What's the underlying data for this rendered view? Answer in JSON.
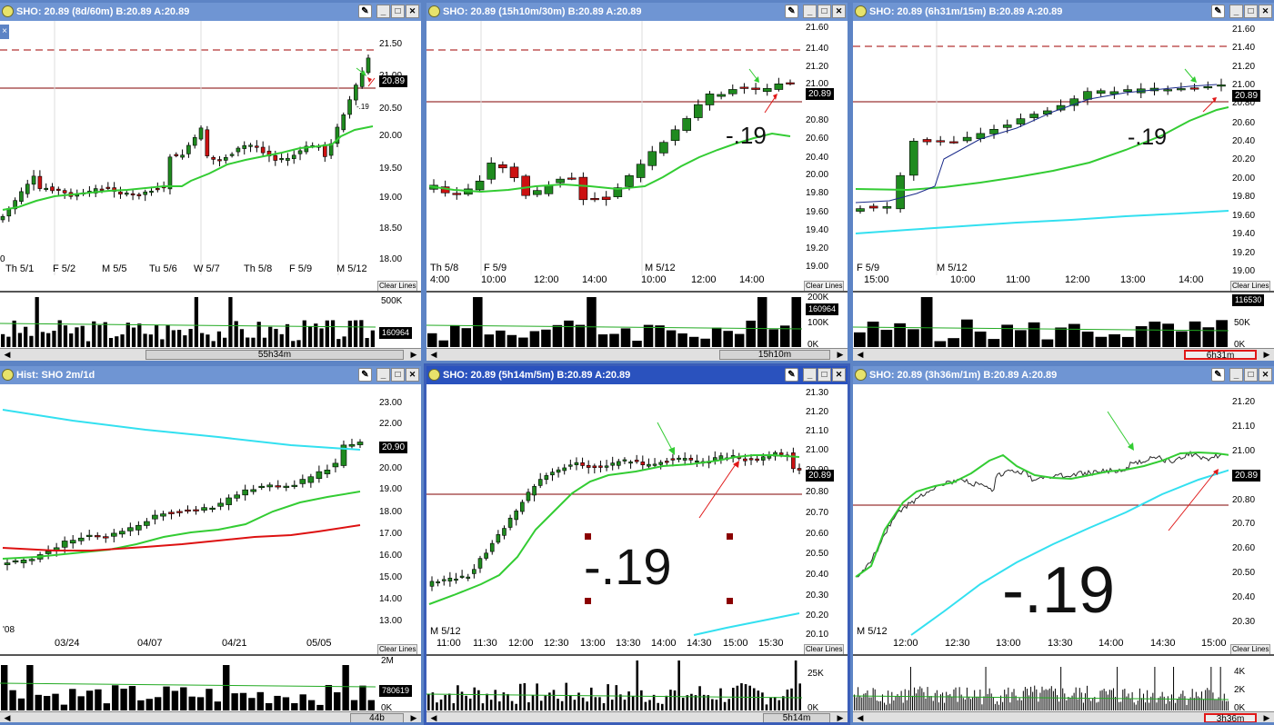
{
  "windows": [
    {
      "id": "w1",
      "title": "SHO: 20.89 (8d/60m)  B:20.89  A:20.89",
      "x_labels": [
        "Th 5/1",
        "F 5/2",
        "M 5/5",
        "Tu 5/6",
        "W 5/7",
        "Th 5/8",
        "F 5/9",
        "M 5/12"
      ],
      "y_labels": [
        "21.50",
        "21.00",
        "20.50",
        "20.00",
        "19.50",
        "19.00",
        "18.50",
        "18.00"
      ],
      "price_tag": "20.89",
      "annotation": "-.19",
      "clear": "Clear Lines",
      "vol_labels": [
        "500K",
        "160964"
      ],
      "scroll_label": "55h34m",
      "left_edge": "0"
    },
    {
      "id": "w2",
      "title": "SHO: 20.89 (15h10m/30m)  B:20.89  A:20.89",
      "x_labels_top": [
        "Th 5/8",
        "F  5/9",
        "M  5/12"
      ],
      "x_labels": [
        "4:00",
        "10:00",
        "12:00",
        "14:00",
        "10:00",
        "12:00",
        "14:00"
      ],
      "y_labels": [
        "21.60",
        "21.40",
        "21.20",
        "21.00",
        "20.80",
        "20.60",
        "20.40",
        "20.20",
        "20.00",
        "19.80",
        "19.60",
        "19.40",
        "19.20",
        "19.00"
      ],
      "price_tag": "20.89",
      "annotation": ".19",
      "annotation_prefix": "-",
      "clear": "Clear Lines",
      "vol_labels": [
        "200K",
        "160964",
        "100K",
        "0K"
      ],
      "scroll_label": "15h10m"
    },
    {
      "id": "w3",
      "title": "SHO: 20.89 (6h31m/15m)  B:20.89  A:20.89",
      "x_labels_top": [
        "F  5/9",
        "M  5/12"
      ],
      "x_labels": [
        "15:00",
        "10:00",
        "11:00",
        "12:00",
        "13:00",
        "14:00"
      ],
      "y_labels": [
        "21.60",
        "21.40",
        "21.20",
        "21.00",
        "20.80",
        "20.60",
        "20.40",
        "20.20",
        "20.00",
        "19.80",
        "19.60",
        "19.40",
        "19.20",
        "19.00"
      ],
      "price_tag": "20.89",
      "annotation": "-.19",
      "clear": "Clear Lines",
      "vol_labels": [
        "116530",
        "50K",
        "0K"
      ],
      "scroll_label": "6h31m"
    },
    {
      "id": "w4",
      "title": "Hist: SHO 2m/1d",
      "x_labels": [
        "'08",
        "03/24",
        "04/07",
        "04/21",
        "05/05"
      ],
      "y_labels": [
        "23.00",
        "22.00",
        "21.00",
        "20.00",
        "19.00",
        "18.00",
        "17.00",
        "16.00",
        "15.00",
        "14.00",
        "13.00"
      ],
      "price_tag": "20.90",
      "clear": "Clear Lines",
      "vol_labels": [
        "2M",
        "780619",
        "0K"
      ],
      "scroll_label": "44b"
    },
    {
      "id": "w5",
      "title": "SHO: 20.89 (5h14m/5m)  B:20.89  A:20.89",
      "x_labels_top": [
        "M  5/12"
      ],
      "x_labels": [
        "11:00",
        "11:30",
        "12:00",
        "12:30",
        "13:00",
        "13:30",
        "14:00",
        "14:30",
        "15:00",
        "15:30"
      ],
      "y_labels": [
        "21.30",
        "21.20",
        "21.10",
        "21.00",
        "20.90",
        "20.80",
        "20.70",
        "20.60",
        "20.50",
        "20.40",
        "20.30",
        "20.20",
        "20.10"
      ],
      "price_tag": "20.89",
      "annotation": "-.19",
      "clear": "Clear Lines",
      "vol_labels": [
        "25K",
        "0K"
      ],
      "scroll_label": "5h14m"
    },
    {
      "id": "w6",
      "title": "SHO: 20.89 (3h36m/1m)  B:20.89  A:20.89",
      "x_labels_top": [
        "M  5/12"
      ],
      "x_labels": [
        "12:00",
        "12:30",
        "13:00",
        "13:30",
        "14:00",
        "14:30",
        "15:00"
      ],
      "y_labels": [
        "21.20",
        "21.10",
        "21.00",
        "20.90",
        "20.80",
        "20.70",
        "20.60",
        "20.50",
        "20.40",
        "20.30"
      ],
      "price_tag": "20.89",
      "annotation": "-.19",
      "clear": "Clear Lines",
      "vol_labels": [
        "4K",
        "2K",
        "0K"
      ],
      "scroll_label": "3h36m"
    }
  ],
  "icons": [
    "tool-icon",
    "minimize-icon",
    "maximize-icon",
    "close-icon"
  ],
  "colors": {
    "up": "#1f8a1f",
    "down": "#cc1111",
    "ma_green": "#33cc33",
    "ma_cyan": "#33e0f0",
    "ma_red": "#dd1111",
    "title_bar": "#6f95d3",
    "title_bar_active": "#2a52be"
  }
}
